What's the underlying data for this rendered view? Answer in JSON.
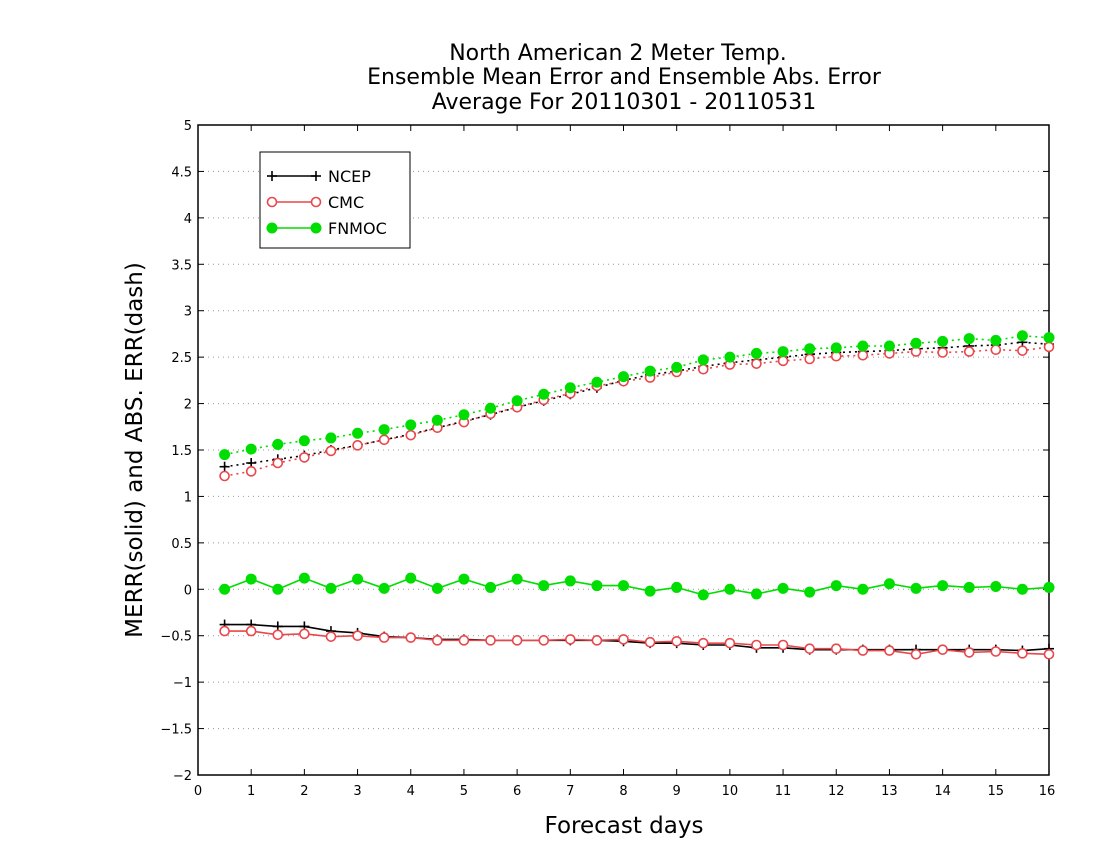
{
  "chart_data": {
    "type": "line",
    "title": [
      "North American 2 Meter Temp.",
      "Ensemble Mean Error and Ensemble Abs. Error",
      "Average For 20110301 - 20110531"
    ],
    "xlabel": "Forecast days",
    "ylabel": "MERR(solid) and ABS. ERR(dash)",
    "xlim": [
      0,
      16
    ],
    "ylim": [
      -2,
      5
    ],
    "xticks": [
      "0",
      "1",
      "2",
      "3",
      "4",
      "5",
      "6",
      "7",
      "8",
      "9",
      "10",
      "11",
      "12",
      "13",
      "14",
      "15",
      "16"
    ],
    "yticks": [
      "-2",
      "-1.5",
      "-1",
      "-0.5",
      "0",
      "0.5",
      "1",
      "1.5",
      "2",
      "2.5",
      "3",
      "3.5",
      "4",
      "4.5",
      "5"
    ],
    "grid": true,
    "legend_position": "top-left",
    "x": [
      0.5,
      1,
      1.5,
      2,
      2.5,
      3,
      3.5,
      4,
      4.5,
      5,
      5.5,
      6,
      6.5,
      7,
      7.5,
      8,
      8.5,
      9,
      9.5,
      10,
      10.5,
      11,
      11.5,
      12,
      12.5,
      13,
      13.5,
      14,
      14.5,
      15,
      15.5,
      16
    ],
    "series": [
      {
        "name": "NCEP",
        "color": "#000000",
        "marker": "plus",
        "merr": [
          -0.38,
          -0.38,
          -0.4,
          -0.4,
          -0.45,
          -0.47,
          -0.51,
          -0.52,
          -0.54,
          -0.54,
          -0.55,
          -0.55,
          -0.55,
          -0.55,
          -0.55,
          -0.56,
          -0.58,
          -0.58,
          -0.6,
          -0.6,
          -0.63,
          -0.63,
          -0.65,
          -0.65,
          -0.65,
          -0.65,
          -0.65,
          -0.65,
          -0.65,
          -0.65,
          -0.66,
          -0.64
        ],
        "abs_err": [
          1.32,
          1.36,
          1.4,
          1.44,
          1.5,
          1.55,
          1.61,
          1.67,
          1.74,
          1.81,
          1.88,
          1.96,
          2.03,
          2.1,
          2.17,
          2.25,
          2.31,
          2.35,
          2.4,
          2.44,
          2.47,
          2.5,
          2.53,
          2.55,
          2.56,
          2.57,
          2.59,
          2.6,
          2.62,
          2.63,
          2.66,
          2.64
        ]
      },
      {
        "name": "CMC",
        "color": "#e8474b",
        "marker": "circle-open",
        "merr": [
          -0.45,
          -0.45,
          -0.49,
          -0.48,
          -0.51,
          -0.5,
          -0.52,
          -0.52,
          -0.55,
          -0.55,
          -0.55,
          -0.55,
          -0.55,
          -0.54,
          -0.55,
          -0.54,
          -0.57,
          -0.56,
          -0.58,
          -0.58,
          -0.6,
          -0.6,
          -0.64,
          -0.64,
          -0.66,
          -0.66,
          -0.7,
          -0.65,
          -0.68,
          -0.67,
          -0.69,
          -0.7
        ],
        "abs_err": [
          1.22,
          1.27,
          1.36,
          1.42,
          1.49,
          1.55,
          1.61,
          1.66,
          1.74,
          1.8,
          1.89,
          1.96,
          2.04,
          2.11,
          2.19,
          2.24,
          2.28,
          2.34,
          2.37,
          2.42,
          2.43,
          2.46,
          2.48,
          2.51,
          2.52,
          2.54,
          2.56,
          2.55,
          2.56,
          2.58,
          2.57,
          2.61
        ]
      },
      {
        "name": "FNMOC",
        "color": "#00dd00",
        "marker": "circle-filled",
        "merr": [
          0.0,
          0.11,
          0.0,
          0.12,
          0.01,
          0.11,
          0.01,
          0.12,
          0.01,
          0.11,
          0.02,
          0.11,
          0.04,
          0.09,
          0.04,
          0.04,
          -0.02,
          0.02,
          -0.06,
          0.0,
          -0.05,
          0.01,
          -0.03,
          0.04,
          0.0,
          0.06,
          0.01,
          0.04,
          0.02,
          0.03,
          0.0,
          0.02
        ],
        "abs_err": [
          1.45,
          1.51,
          1.56,
          1.6,
          1.63,
          1.68,
          1.72,
          1.77,
          1.82,
          1.88,
          1.95,
          2.03,
          2.1,
          2.17,
          2.23,
          2.29,
          2.35,
          2.39,
          2.47,
          2.5,
          2.54,
          2.56,
          2.59,
          2.6,
          2.62,
          2.62,
          2.65,
          2.67,
          2.7,
          2.68,
          2.73,
          2.71
        ]
      }
    ]
  }
}
